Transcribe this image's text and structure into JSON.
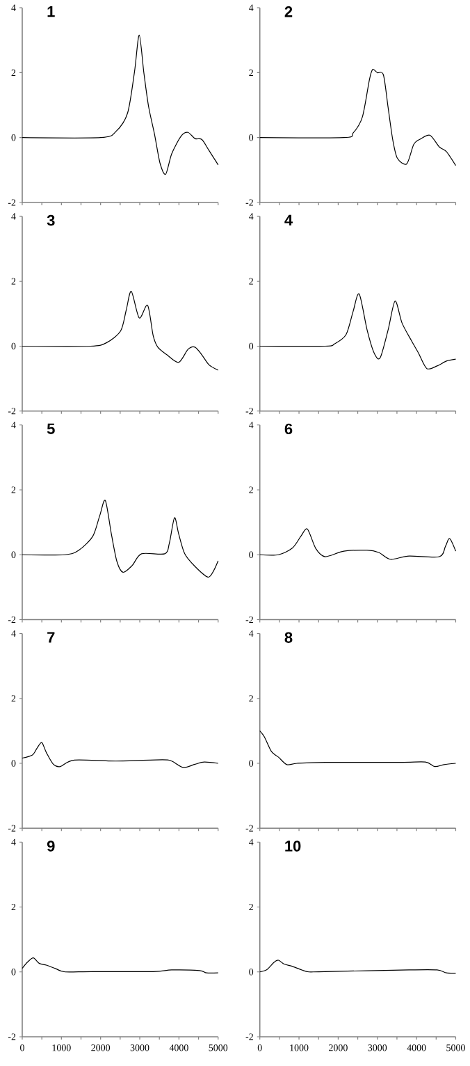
{
  "chart_data": [
    {
      "type": "line",
      "title": "1",
      "x": [
        0,
        2000,
        2393,
        2690,
        2867,
        2986,
        3104,
        3223,
        3377,
        3519,
        3661,
        3815,
        4052,
        4230,
        4408,
        4585,
        4763,
        5000
      ],
      "values": [
        0,
        0,
        0.19,
        0.76,
        2.04,
        3.16,
        2.0,
        0.97,
        0.1,
        -0.8,
        -1.13,
        -0.5,
        0.04,
        0.16,
        -0.03,
        -0.06,
        -0.39,
        -0.84
      ],
      "color": "#000000",
      "xlim": [
        0,
        5000
      ],
      "ylim": [
        -2,
        4
      ],
      "xticks": [
        0,
        1000,
        2000,
        3000,
        4000,
        5000
      ],
      "yticks": [
        -2,
        0,
        2,
        4
      ],
      "tick_labels": "y"
    },
    {
      "type": "line",
      "title": "2",
      "x": [
        0,
        2143,
        2381,
        2619,
        2798,
        2881,
        3000,
        3155,
        3274,
        3393,
        3512,
        3750,
        3929,
        4107,
        4345,
        4583,
        4762,
        5000
      ],
      "values": [
        0,
        0,
        0.14,
        0.64,
        1.79,
        2.1,
        2.0,
        1.93,
        0.93,
        -0.07,
        -0.64,
        -0.81,
        -0.21,
        -0.04,
        0.07,
        -0.29,
        -0.43,
        -0.86
      ],
      "color": "#000000",
      "xlim": [
        0,
        5000
      ],
      "ylim": [
        -2,
        4
      ],
      "xticks": [
        0,
        1000,
        2000,
        3000,
        4000,
        5000
      ],
      "yticks": [
        -2,
        0,
        2,
        4
      ],
      "tick_labels": "y"
    },
    {
      "type": "line",
      "title": "3",
      "x": [
        0,
        1742,
        2156,
        2512,
        2654,
        2784,
        2986,
        3199,
        3341,
        3460,
        3697,
        3993,
        4230,
        4408,
        4585,
        4763,
        5000
      ],
      "values": [
        0,
        0,
        0.11,
        0.47,
        1.11,
        1.69,
        0.87,
        1.26,
        0.33,
        -0.03,
        -0.27,
        -0.5,
        -0.1,
        -0.03,
        -0.27,
        -0.57,
        -0.74
      ],
      "color": "#000000",
      "xlim": [
        0,
        5000
      ],
      "ylim": [
        -2,
        4
      ],
      "xticks": [
        0,
        1000,
        2000,
        3000,
        4000,
        5000
      ],
      "yticks": [
        -2,
        0,
        2,
        4
      ],
      "tick_labels": "y"
    },
    {
      "type": "line",
      "title": "4",
      "x": [
        0,
        1667,
        1905,
        2202,
        2381,
        2536,
        2738,
        2917,
        3071,
        3274,
        3452,
        3631,
        3869,
        4048,
        4262,
        4524,
        4762,
        5000
      ],
      "values": [
        0,
        0,
        0.07,
        0.36,
        1.07,
        1.61,
        0.5,
        -0.21,
        -0.36,
        0.5,
        1.39,
        0.71,
        0.17,
        -0.21,
        -0.69,
        -0.61,
        -0.46,
        -0.4
      ],
      "color": "#000000",
      "xlim": [
        0,
        5000
      ],
      "ylim": [
        -2,
        4
      ],
      "xticks": [
        0,
        1000,
        2000,
        3000,
        4000,
        5000
      ],
      "yticks": [
        -2,
        0,
        2,
        4
      ],
      "tick_labels": "y"
    },
    {
      "type": "line",
      "title": "5",
      "x": [
        0,
        1090,
        1445,
        1801,
        1979,
        2121,
        2275,
        2417,
        2571,
        2808,
        3045,
        3637,
        3756,
        3886,
        3993,
        4147,
        4408,
        4739,
        4882,
        5000
      ],
      "values": [
        0,
        0,
        0.14,
        0.57,
        1.21,
        1.67,
        0.64,
        -0.21,
        -0.54,
        -0.33,
        0.03,
        0.03,
        0.36,
        1.14,
        0.64,
        0.03,
        -0.36,
        -0.69,
        -0.5,
        -0.19
      ],
      "color": "#000000",
      "xlim": [
        0,
        5000
      ],
      "ylim": [
        -2,
        4
      ],
      "xticks": [
        0,
        1000,
        2000,
        3000,
        4000,
        5000
      ],
      "yticks": [
        -2,
        0,
        2,
        4
      ],
      "tick_labels": "y"
    },
    {
      "type": "line",
      "title": "6",
      "x": [
        0,
        476,
        833,
        1048,
        1214,
        1429,
        1667,
        2143,
        2738,
        3036,
        3333,
        3810,
        4583,
        4738,
        4845,
        5000
      ],
      "values": [
        0,
        0,
        0.21,
        0.57,
        0.79,
        0.19,
        -0.06,
        0.11,
        0.14,
        0.07,
        -0.14,
        -0.04,
        -0.06,
        0.26,
        0.5,
        0.11
      ],
      "color": "#000000",
      "xlim": [
        0,
        5000
      ],
      "ylim": [
        -2,
        4
      ],
      "xticks": [
        0,
        1000,
        2000,
        3000,
        4000,
        5000
      ],
      "yticks": [
        -2,
        0,
        2,
        4
      ],
      "tick_labels": "y"
    },
    {
      "type": "line",
      "title": "7",
      "x": [
        0,
        261,
        379,
        498,
        616,
        794,
        972,
        1327,
        2393,
        3578,
        3815,
        4111,
        4408,
        4645,
        5000
      ],
      "values": [
        0.16,
        0.26,
        0.47,
        0.64,
        0.33,
        -0.03,
        -0.1,
        0.1,
        0.07,
        0.11,
        0.07,
        -0.13,
        -0.03,
        0.04,
        0
      ],
      "color": "#000000",
      "xlim": [
        0,
        5000
      ],
      "ylim": [
        -2,
        4
      ],
      "xticks": [
        0,
        1000,
        2000,
        3000,
        4000,
        5000
      ],
      "yticks": [
        -2,
        0,
        2,
        4
      ],
      "tick_labels": "y"
    },
    {
      "type": "line",
      "title": "8",
      "x": [
        0,
        119,
        298,
        476,
        690,
        952,
        1667,
        3571,
        4226,
        4464,
        4702,
        5000
      ],
      "values": [
        1.0,
        0.81,
        0.36,
        0.19,
        -0.04,
        0,
        0.03,
        0.03,
        0.04,
        -0.1,
        -0.04,
        0
      ],
      "color": "#000000",
      "xlim": [
        0,
        5000
      ],
      "ylim": [
        -2,
        4
      ],
      "xticks": [
        0,
        1000,
        2000,
        3000,
        4000,
        5000
      ],
      "yticks": [
        -2,
        0,
        2,
        4
      ],
      "tick_labels": "y"
    },
    {
      "type": "line",
      "title": "9",
      "x": [
        0,
        142,
        284,
        438,
        616,
        853,
        1090,
        1801,
        3341,
        3815,
        4526,
        4704,
        5000
      ],
      "values": [
        0.11,
        0.31,
        0.43,
        0.26,
        0.21,
        0.1,
        0,
        0.01,
        0.01,
        0.06,
        0.04,
        -0.03,
        -0.03
      ],
      "color": "#000000",
      "xlim": [
        0,
        5000
      ],
      "ylim": [
        -2,
        4
      ],
      "xticks": [
        0,
        1000,
        2000,
        3000,
        4000,
        5000
      ],
      "yticks": [
        -2,
        0,
        2,
        4
      ]
    },
    {
      "type": "line",
      "title": "10",
      "x": [
        0,
        179,
        357,
        476,
        619,
        833,
        1071,
        1250,
        1667,
        3810,
        4524,
        4762,
        5000
      ],
      "values": [
        0,
        0.07,
        0.29,
        0.36,
        0.24,
        0.17,
        0.06,
        0,
        0.01,
        0.06,
        0.06,
        -0.03,
        -0.04
      ],
      "color": "#000000",
      "xlim": [
        0,
        5000
      ],
      "ylim": [
        -2,
        4
      ],
      "xticks": [
        0,
        1000,
        2000,
        3000,
        4000,
        5000
      ],
      "yticks": [
        -2,
        0,
        2,
        4
      ]
    }
  ]
}
